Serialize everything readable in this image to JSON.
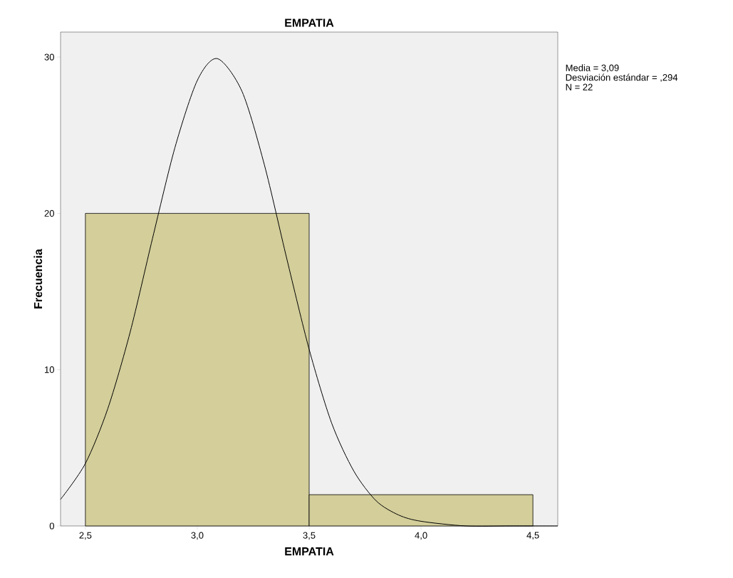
{
  "chart_data": {
    "type": "histogram",
    "title": "EMPATIA",
    "xlabel": "EMPATIA",
    "ylabel": "Frecuencia",
    "bins": [
      2.5,
      3.5,
      4.5
    ],
    "values": [
      20,
      2
    ],
    "color": "#d3ce9a",
    "series": [
      {
        "type": "line",
        "color": "#000000",
        "x": [
          2.389,
          2.5,
          2.6,
          2.7,
          2.8,
          2.9,
          3.0,
          3.09,
          3.2,
          3.3,
          3.4,
          3.5,
          3.6,
          3.7,
          3.8,
          3.9,
          4.0,
          4.2,
          4.4,
          4.611
        ],
        "values": [
          1.7,
          4.0,
          7.5,
          12.4,
          18.4,
          24.2,
          28.5,
          29.9,
          27.8,
          23.1,
          17.1,
          11.3,
          6.6,
          3.5,
          1.6,
          0.7,
          0.3,
          0.0,
          0.0,
          0.0
        ]
      }
    ],
    "xlim": [
      2.389,
      4.611
    ],
    "ylim": [
      0,
      31.6
    ],
    "xticks": [
      {
        "value": 2.5,
        "label": "2,5"
      },
      {
        "value": 3.0,
        "label": "3,0"
      },
      {
        "value": 3.5,
        "label": "3,5"
      },
      {
        "value": 4.0,
        "label": "4,0"
      },
      {
        "value": 4.5,
        "label": "4,5"
      }
    ],
    "yticks": [
      0,
      10,
      20,
      30
    ],
    "annotations": [
      "Media = 3,09",
      "Desviación estándar = ,294",
      "N = 22"
    ],
    "grid": false,
    "legend": false,
    "marker": "none",
    "line_style": "solid"
  }
}
